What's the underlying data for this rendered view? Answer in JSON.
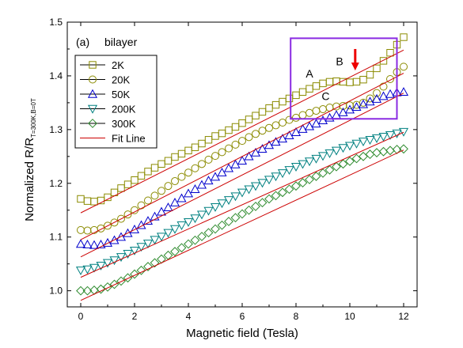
{
  "chart_data": {
    "type": "scatter",
    "panel_label": "(a)",
    "panel_title": "bilayer",
    "xlabel": "Magnetic field (Tesla)",
    "ylabel_main": "Normalized R/R",
    "ylabel_sub": "T=300K,B=0T",
    "xlim": [
      -0.5,
      12.5
    ],
    "ylim": [
      0.97,
      1.5
    ],
    "x_ticks": [
      0,
      2,
      4,
      6,
      8,
      10,
      12
    ],
    "y_ticks": [
      1.0,
      1.1,
      1.2,
      1.3,
      1.4,
      1.5
    ],
    "legend_position": "top-left",
    "annotations": [
      "A",
      "B",
      "C"
    ],
    "annotation_box_x": [
      7.8,
      11.75
    ],
    "annotation_box_y": [
      1.32,
      1.47
    ],
    "arrow_x": 10.2,
    "arrow_y": [
      1.45,
      1.41
    ],
    "fit_line_label": "Fit Line",
    "x": [
      0.0,
      0.25,
      0.5,
      0.75,
      1.0,
      1.25,
      1.5,
      1.75,
      2.0,
      2.25,
      2.5,
      2.75,
      3.0,
      3.25,
      3.5,
      3.75,
      4.0,
      4.25,
      4.5,
      4.75,
      5.0,
      5.25,
      5.5,
      5.75,
      6.0,
      6.25,
      6.5,
      6.75,
      7.0,
      7.25,
      7.5,
      7.75,
      8.0,
      8.25,
      8.5,
      8.75,
      9.0,
      9.25,
      9.5,
      9.75,
      10.0,
      10.25,
      10.5,
      10.75,
      11.0,
      11.25,
      11.5,
      11.75,
      12.0
    ],
    "series": [
      {
        "name": "2K",
        "marker": "square",
        "color": "#8b8b00",
        "values": [
          1.171,
          1.167,
          1.166,
          1.168,
          1.174,
          1.183,
          1.191,
          1.198,
          1.206,
          1.214,
          1.222,
          1.229,
          1.236,
          1.242,
          1.249,
          1.255,
          1.261,
          1.267,
          1.274,
          1.281,
          1.288,
          1.293,
          1.299,
          1.305,
          1.312,
          1.319,
          1.326,
          1.333,
          1.34,
          1.346,
          1.352,
          1.358,
          1.364,
          1.37,
          1.376,
          1.381,
          1.386,
          1.389,
          1.39,
          1.389,
          1.388,
          1.389,
          1.393,
          1.402,
          1.414,
          1.428,
          1.443,
          1.458,
          1.472
        ],
        "fit": [
          1.145,
          1.448
        ]
      },
      {
        "name": "20K",
        "marker": "circle",
        "color": "#8b8b00",
        "values": [
          1.113,
          1.112,
          1.113,
          1.116,
          1.121,
          1.127,
          1.134,
          1.142,
          1.15,
          1.159,
          1.168,
          1.177,
          1.186,
          1.195,
          1.204,
          1.212,
          1.22,
          1.228,
          1.236,
          1.244,
          1.251,
          1.258,
          1.265,
          1.272,
          1.279,
          1.286,
          1.292,
          1.298,
          1.303,
          1.308,
          1.313,
          1.318,
          1.322,
          1.327,
          1.331,
          1.335,
          1.338,
          1.341,
          1.343,
          1.344,
          1.345,
          1.346,
          1.35,
          1.358,
          1.368,
          1.38,
          1.394,
          1.407,
          1.417
        ],
        "fit": [
          1.095,
          1.405
        ]
      },
      {
        "name": "50K",
        "marker": "triangle-up",
        "color": "#0000cc",
        "values": [
          1.087,
          1.086,
          1.085,
          1.086,
          1.089,
          1.094,
          1.1,
          1.107,
          1.114,
          1.122,
          1.13,
          1.138,
          1.147,
          1.155,
          1.164,
          1.172,
          1.181,
          1.189,
          1.197,
          1.205,
          1.212,
          1.22,
          1.228,
          1.235,
          1.242,
          1.25,
          1.257,
          1.264,
          1.271,
          1.277,
          1.283,
          1.289,
          1.295,
          1.301,
          1.306,
          1.311,
          1.317,
          1.322,
          1.327,
          1.332,
          1.337,
          1.342,
          1.347,
          1.352,
          1.357,
          1.362,
          1.366,
          1.369,
          1.37
        ],
        "fit": [
          1.063,
          1.368
        ]
      },
      {
        "name": "200K",
        "marker": "triangle-down",
        "color": "#008080",
        "values": [
          1.038,
          1.04,
          1.043,
          1.047,
          1.052,
          1.057,
          1.063,
          1.069,
          1.075,
          1.082,
          1.088,
          1.095,
          1.101,
          1.108,
          1.115,
          1.122,
          1.128,
          1.135,
          1.142,
          1.149,
          1.156,
          1.163,
          1.169,
          1.176,
          1.183,
          1.189,
          1.195,
          1.201,
          1.207,
          1.213,
          1.219,
          1.225,
          1.231,
          1.236,
          1.241,
          1.246,
          1.251,
          1.256,
          1.261,
          1.266,
          1.27,
          1.274,
          1.278,
          1.281,
          1.284,
          1.287,
          1.29,
          1.293,
          1.296
        ],
        "fit": [
          1.025,
          1.295
        ]
      },
      {
        "name": "300K",
        "marker": "diamond",
        "color": "#2e8b2e",
        "values": [
          1.0,
          1.0,
          1.001,
          1.003,
          1.007,
          1.012,
          1.018,
          1.024,
          1.031,
          1.038,
          1.045,
          1.052,
          1.059,
          1.066,
          1.073,
          1.08,
          1.087,
          1.094,
          1.101,
          1.108,
          1.115,
          1.122,
          1.129,
          1.136,
          1.143,
          1.15,
          1.157,
          1.164,
          1.171,
          1.177,
          1.183,
          1.189,
          1.195,
          1.201,
          1.207,
          1.213,
          1.219,
          1.225,
          1.231,
          1.236,
          1.241,
          1.246,
          1.25,
          1.254,
          1.257,
          1.259,
          1.261,
          1.263,
          1.264
        ],
        "fit": [
          0.982,
          1.262
        ]
      }
    ],
    "fit_color": "#cc0000",
    "marker_colors": {
      "square": "#8b8b00",
      "circle": "#8b8b00",
      "triangle-up": "#0000cc",
      "triangle-down": "#008080",
      "diamond": "#2e8b2e"
    },
    "box_color": "#8a2be2",
    "arrow_color": "#ee0000"
  }
}
